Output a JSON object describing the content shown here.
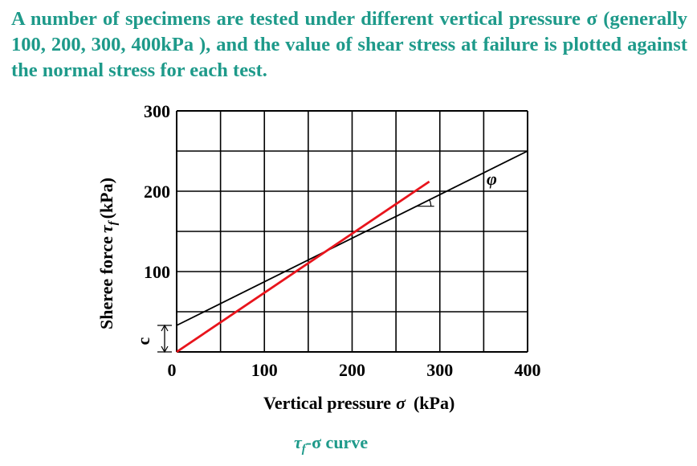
{
  "intro": {
    "text": "A number of specimens are tested under different vertical pressure σ (generally 100, 200, 300, 400kPa ), and the value of shear stress at failure is plotted against the normal stress for each test."
  },
  "chart_data": {
    "type": "line",
    "xlabel_text": "Vertical pressure",
    "xlabel_symbol": "σ",
    "xlabel_unit": "(kPa)",
    "ylabel_text": "Sheree force",
    "ylabel_symbol": "τ",
    "ylabel_sub": "f",
    "ylabel_unit": "(kPa)",
    "xlim": [
      0,
      400
    ],
    "ylim": [
      0,
      300
    ],
    "x_ticks": [
      0,
      100,
      200,
      300,
      400
    ],
    "y_ticks": [
      100,
      200,
      300
    ],
    "grid": true,
    "series": [
      {
        "x": [
          0,
          400
        ],
        "y": [
          33,
          250
        ],
        "color": "#000000"
      },
      {
        "x": [
          0,
          288
        ],
        "y": [
          0,
          212
        ],
        "color": "#e8141c"
      }
    ],
    "annotations": {
      "phi": "φ",
      "c": "c"
    },
    "caption": {
      "tau": "τ",
      "sub": "f",
      "rest": "-σ  curve"
    }
  }
}
